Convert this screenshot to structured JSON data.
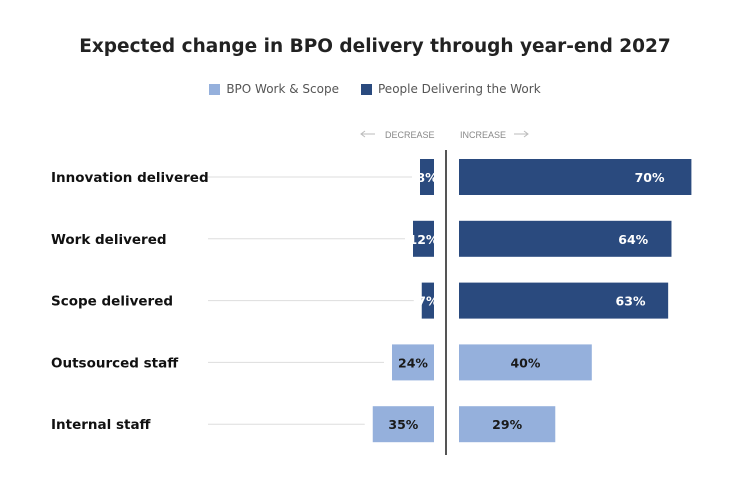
{
  "chart_data": {
    "type": "bar",
    "title": "Expected change in BPO delivery through year-end 2027",
    "categories": [
      "Innovation delivered",
      "Work delivered",
      "Scope delivered",
      "Outsourced staff",
      "Internal staff"
    ],
    "decrease": [
      8,
      12,
      7,
      24,
      35
    ],
    "increase": [
      70,
      64,
      63,
      40,
      29
    ],
    "group": [
      "people",
      "people",
      "people",
      "bpo",
      "bpo"
    ],
    "direction_labels": {
      "decrease": "DECREASE",
      "increase": "INCREASE"
    },
    "legend_placement": "top-center",
    "value_suffix": "%"
  },
  "legend": {
    "items": [
      {
        "key": "bpo",
        "label": "BPO Work & Scope",
        "color": "#95b0dc"
      },
      {
        "key": "people",
        "label": "People Delivering the Work",
        "color": "#2a4a7e"
      }
    ]
  },
  "colors": {
    "bpo": "#95b0dc",
    "people": "#2a4a7e",
    "bpo_text": "#1a1a1a",
    "people_text": "#ffffff",
    "axis": "#555555",
    "guide": "#dddddd"
  }
}
